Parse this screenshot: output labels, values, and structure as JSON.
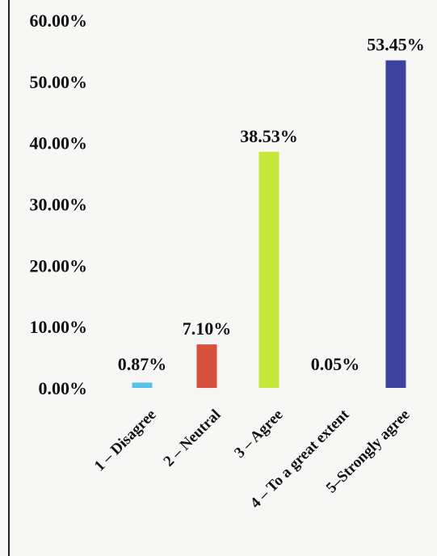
{
  "chart_data": {
    "type": "bar",
    "categories": [
      "1 – Disagree",
      "2 – Neutral",
      "3 – Agree",
      "4 – To a great extent",
      "5–Strongly agree"
    ],
    "values": [
      0.87,
      7.1,
      38.53,
      0.05,
      53.45
    ],
    "data_labels": [
      "0.87%",
      "7.10%",
      "38.53%",
      "0.05%",
      "53.45%"
    ],
    "y_ticks": [
      "0.00%",
      "10.00%",
      "20.00%",
      "30.00%",
      "40.00%",
      "50.00%",
      "60.00%"
    ],
    "ylim": [
      0,
      60
    ],
    "colors": [
      "#5bc0ea",
      "#d9513a",
      "#c6e83a",
      "#f7f7f5",
      "#3f41a0"
    ],
    "grid": false,
    "legend": "none",
    "title": "",
    "xlabel": "",
    "ylabel": ""
  }
}
